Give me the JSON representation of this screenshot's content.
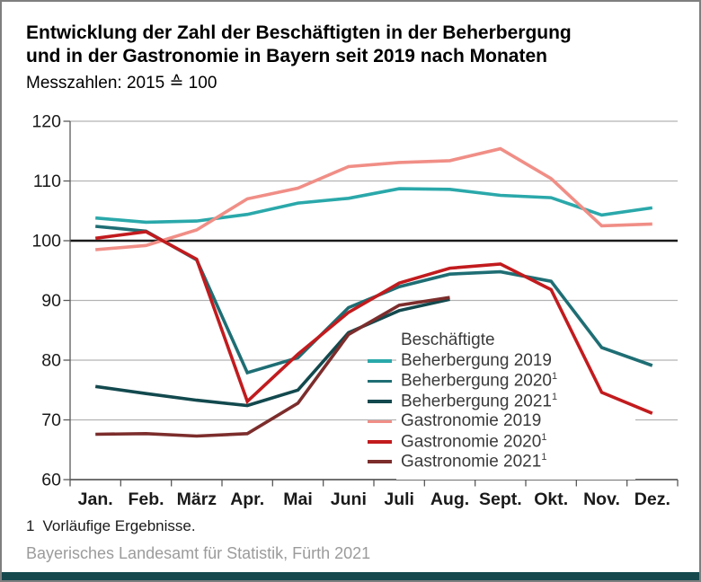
{
  "header": {
    "title_line1": "Entwicklung der Zahl der Beschäftigten in der Beherbergung",
    "title_line2": "und in der Gastronomie in Bayern seit 2019 nach Monaten",
    "subtitle": "Messzahlen: 2015 ≙ 100"
  },
  "footer": {
    "footnote_marker": "1",
    "footnote_text": "Vorläufige Ergebnisse.",
    "source": "Bayerisches Landesamt für Statistik, Fürth 2021",
    "brand_bar_color": "#15494e"
  },
  "chart_data": {
    "type": "line",
    "title": "Entwicklung der Zahl der Beschäftigten in der Beherbergung und in der Gastronomie in Bayern seit 2019 nach Monaten",
    "subtitle": "Messzahlen: 2015 ≙ 100",
    "categories": [
      "Jan.",
      "Feb.",
      "März",
      "Apr.",
      "Mai",
      "Juni",
      "Juli",
      "Aug.",
      "Sept.",
      "Okt.",
      "Nov.",
      "Dez."
    ],
    "ylim": [
      60,
      120
    ],
    "yticks": [
      60,
      70,
      80,
      90,
      100,
      110,
      120
    ],
    "baseline_value": 100,
    "grid": "horizontal",
    "legend_position": "inside-bottom-right",
    "legend_title": "Beschäftigte",
    "colors": {
      "grid": "#b3b3b3",
      "baseline": "#1a1a1a",
      "axis": "#595959",
      "tick_label": "#1a1a1a"
    },
    "series": [
      {
        "name": "Beherbergung 2019",
        "sup": "",
        "color": "#2aa8aa",
        "values": [
          103.8,
          103.1,
          103.3,
          104.4,
          106.3,
          107.1,
          108.7,
          108.6,
          107.6,
          107.2,
          104.3,
          105.5
        ]
      },
      {
        "name": "Beherbergung 2020",
        "sup": "1",
        "color": "#1e6e74",
        "values": [
          102.4,
          101.6,
          96.8,
          77.9,
          80.4,
          88.8,
          92.3,
          94.4,
          94.8,
          93.2,
          82.1,
          79.1
        ]
      },
      {
        "name": "Beherbergung 2021",
        "sup": "1",
        "color": "#12494e",
        "values": [
          75.6,
          74.4,
          73.3,
          72.4,
          75.0,
          84.6,
          88.3,
          90.2,
          null,
          null,
          null,
          null
        ]
      },
      {
        "name": "Gastronomie 2019",
        "sup": "",
        "color": "#f08e86",
        "values": [
          98.5,
          99.2,
          101.8,
          107.0,
          108.8,
          112.4,
          113.1,
          113.4,
          115.4,
          110.4,
          102.5,
          102.8
        ]
      },
      {
        "name": "Gastronomie 2020",
        "sup": "1",
        "color": "#c21b1e",
        "values": [
          100.4,
          101.5,
          96.9,
          73.1,
          81.0,
          88.0,
          92.9,
          95.4,
          96.1,
          91.8,
          74.6,
          71.1
        ]
      },
      {
        "name": "Gastronomie 2021",
        "sup": "1",
        "color": "#7c2d2c",
        "values": [
          67.6,
          67.7,
          67.3,
          67.7,
          72.8,
          84.3,
          89.2,
          90.5,
          null,
          null,
          null,
          null
        ]
      }
    ]
  }
}
